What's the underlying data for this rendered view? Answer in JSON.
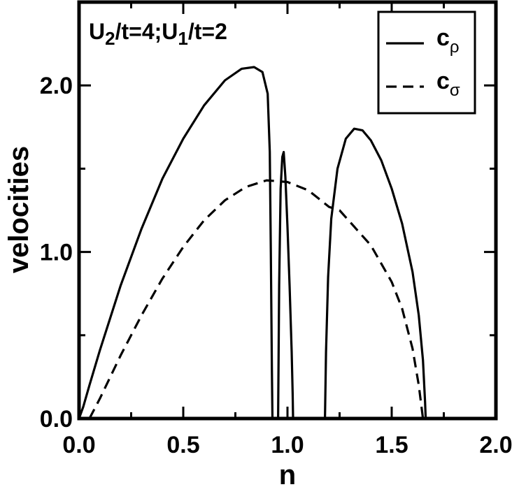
{
  "chart_data": {
    "type": "line",
    "xlabel": "n",
    "ylabel": "velocities",
    "xlim": [
      0,
      2.0
    ],
    "ylim": [
      0,
      2.5
    ],
    "xticks": [
      {
        "value": 0.0,
        "label": "0.0"
      },
      {
        "value": 0.5,
        "label": "0.5"
      },
      {
        "value": 1.0,
        "label": "1.0"
      },
      {
        "value": 1.5,
        "label": "1.5"
      },
      {
        "value": 2.0,
        "label": "2.0"
      }
    ],
    "yticks": [
      {
        "value": 0.0,
        "label": "0.0"
      },
      {
        "value": 1.0,
        "label": "1.0"
      },
      {
        "value": 2.0,
        "label": "2.0"
      }
    ],
    "x_minor_step": 0.25,
    "y_minor_step": 0.5,
    "grid": false,
    "annotation": {
      "parts": [
        {
          "text": "U",
          "sub": false
        },
        {
          "text": "2",
          "sub": true
        },
        {
          "text": "/t=4;U",
          "sub": false
        },
        {
          "text": "1",
          "sub": true
        },
        {
          "text": "/t=2",
          "sub": false
        }
      ]
    },
    "legend": {
      "position": "top-right",
      "entries": [
        {
          "base": "c",
          "sub": "ρ",
          "style": "solid"
        },
        {
          "base": "c",
          "sub": "σ",
          "style": "dashed"
        }
      ]
    },
    "series": [
      {
        "style": "solid",
        "segments": [
          [
            [
              0.0,
              0.0
            ],
            [
              0.02,
              0.07
            ],
            [
              0.05,
              0.2
            ],
            [
              0.1,
              0.41
            ],
            [
              0.2,
              0.8
            ],
            [
              0.3,
              1.14
            ],
            [
              0.4,
              1.44
            ],
            [
              0.5,
              1.68
            ],
            [
              0.6,
              1.88
            ],
            [
              0.7,
              2.03
            ],
            [
              0.78,
              2.1
            ],
            [
              0.84,
              2.11
            ],
            [
              0.88,
              2.08
            ],
            [
              0.905,
              1.95
            ],
            [
              0.915,
              1.6
            ],
            [
              0.92,
              1.0
            ],
            [
              0.925,
              0.3
            ],
            [
              0.928,
              0.0
            ]
          ],
          [
            [
              0.955,
              0.0
            ],
            [
              0.96,
              0.8
            ],
            [
              0.967,
              1.38
            ],
            [
              0.975,
              1.57
            ],
            [
              0.982,
              1.6
            ],
            [
              0.99,
              1.45
            ],
            [
              1.0,
              1.15
            ],
            [
              1.01,
              0.8
            ],
            [
              1.02,
              0.4
            ],
            [
              1.025,
              0.15
            ],
            [
              1.027,
              0.0
            ]
          ],
          [
            [
              1.18,
              0.0
            ],
            [
              1.185,
              0.4
            ],
            [
              1.195,
              0.85
            ],
            [
              1.21,
              1.2
            ],
            [
              1.24,
              1.5
            ],
            [
              1.28,
              1.68
            ],
            [
              1.32,
              1.74
            ],
            [
              1.36,
              1.73
            ],
            [
              1.4,
              1.67
            ],
            [
              1.45,
              1.55
            ],
            [
              1.5,
              1.38
            ],
            [
              1.55,
              1.17
            ],
            [
              1.6,
              0.88
            ],
            [
              1.63,
              0.62
            ],
            [
              1.65,
              0.35
            ],
            [
              1.66,
              0.1
            ],
            [
              1.663,
              0.0
            ]
          ]
        ]
      },
      {
        "style": "dashed",
        "segments": [
          [
            [
              0.05,
              0.0
            ],
            [
              0.1,
              0.12
            ],
            [
              0.2,
              0.38
            ],
            [
              0.3,
              0.62
            ],
            [
              0.4,
              0.84
            ],
            [
              0.5,
              1.03
            ],
            [
              0.6,
              1.19
            ],
            [
              0.7,
              1.31
            ],
            [
              0.8,
              1.39
            ],
            [
              0.9,
              1.43
            ],
            [
              1.0,
              1.42
            ],
            [
              1.1,
              1.37
            ],
            [
              1.15,
              1.32
            ],
            [
              1.2,
              1.27
            ],
            [
              1.25,
              1.25
            ],
            [
              1.3,
              1.18
            ],
            [
              1.4,
              1.04
            ],
            [
              1.5,
              0.82
            ],
            [
              1.55,
              0.66
            ],
            [
              1.6,
              0.42
            ],
            [
              1.63,
              0.2
            ],
            [
              1.65,
              0.0
            ]
          ]
        ]
      }
    ]
  }
}
